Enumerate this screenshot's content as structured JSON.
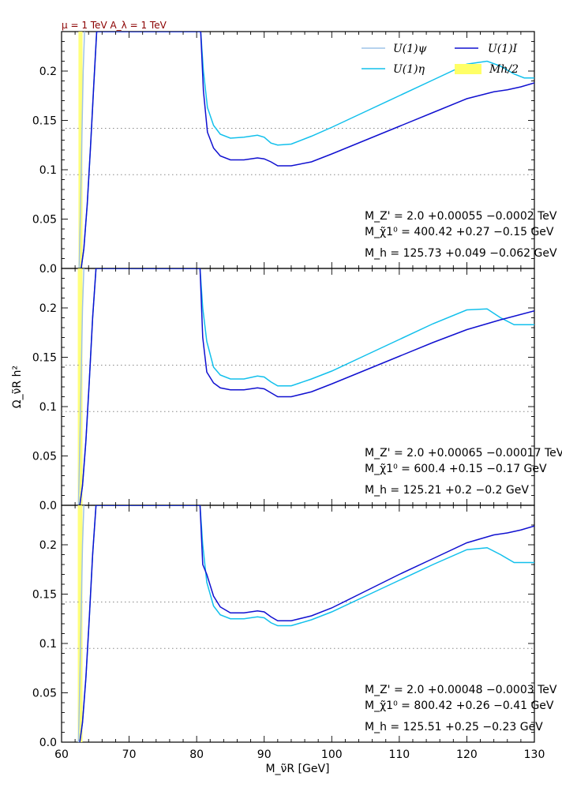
{
  "header_label": "μ = 1 TeV  A_λ = 1 TeV",
  "xlabel": "M_ν̃R [GeV]",
  "ylabel": "Ω_ν̃R h²",
  "colors": {
    "U1_psi": "#9ec3e8",
    "U1_eta": "#12c0ec",
    "U1_I": "#1010d0",
    "Mh_half_band": "#ffff66",
    "reference_lines": "#888888"
  },
  "legend": [
    {
      "key": "U1_psi",
      "label": "U(1)ψ",
      "kind": "line"
    },
    {
      "key": "U1_I",
      "label": "U(1)I",
      "kind": "line"
    },
    {
      "key": "U1_eta",
      "label": "U(1)η",
      "kind": "line"
    },
    {
      "key": "Mh_half_band",
      "label": "Mh/2",
      "kind": "band"
    }
  ],
  "chart_data": [
    {
      "type": "line",
      "xlim": [
        60,
        130
      ],
      "ylim": [
        0,
        0.24
      ],
      "xticks": [
        60,
        70,
        80,
        90,
        100,
        110,
        120,
        130
      ],
      "yticks": [
        0.0,
        0.05,
        0.1,
        0.15,
        0.2
      ],
      "ytick_labels": [
        "0.0",
        "0.05",
        "0.1",
        "0.15",
        "0.2"
      ],
      "reference_lines": [
        0.095,
        0.142
      ],
      "band_x": [
        62.5,
        63.1
      ],
      "annotations": [
        "M_Z' = 2.0 +0.00055 −0.0002 TeV",
        "M_χ̃1⁰ = 400.42 +0.27 −0.15 GeV",
        "M_h = 125.73 +0.049 −0.062 GeV"
      ],
      "series": [
        {
          "name": "U(1)ψ",
          "key": "U1_psi",
          "x": [
            62.6,
            62.8,
            63.0,
            63.2,
            63.4
          ],
          "y": [
            0.0,
            0.06,
            0.13,
            0.2,
            0.24
          ]
        },
        {
          "name": "U(1)η",
          "key": "U1_eta",
          "x": [
            62.9,
            63.3,
            63.8,
            64.3,
            64.8,
            65.2,
            80.6,
            81.0,
            81.6,
            82.5,
            83.5,
            85.0,
            87.0,
            89.0,
            90.0,
            91.0,
            92.0,
            94.0,
            97.0,
            100.0,
            105.0,
            110.0,
            115.0,
            120.0,
            123.0,
            125.0,
            127.0,
            128.5,
            130.0
          ],
          "y": [
            0.0,
            0.02,
            0.065,
            0.125,
            0.19,
            0.24,
            0.24,
            0.2,
            0.163,
            0.145,
            0.136,
            0.132,
            0.133,
            0.135,
            0.133,
            0.127,
            0.125,
            0.126,
            0.134,
            0.143,
            0.159,
            0.175,
            0.191,
            0.207,
            0.21,
            0.205,
            0.197,
            0.193,
            0.193
          ]
        },
        {
          "name": "U(1)I",
          "key": "U1_I",
          "x": [
            62.9,
            63.3,
            63.8,
            64.3,
            64.8,
            65.2,
            80.6,
            81.0,
            81.6,
            82.5,
            83.5,
            85.0,
            87.0,
            89.0,
            90.0,
            91.0,
            92.0,
            94.0,
            97.0,
            100.0,
            105.0,
            110.0,
            115.0,
            120.0,
            124.0,
            126.0,
            128.0,
            130.0
          ],
          "y": [
            0.0,
            0.02,
            0.065,
            0.125,
            0.19,
            0.24,
            0.24,
            0.18,
            0.138,
            0.122,
            0.114,
            0.11,
            0.11,
            0.112,
            0.111,
            0.108,
            0.104,
            0.104,
            0.108,
            0.116,
            0.13,
            0.144,
            0.158,
            0.172,
            0.179,
            0.181,
            0.184,
            0.188
          ]
        }
      ]
    },
    {
      "type": "line",
      "xlim": [
        60,
        130
      ],
      "ylim": [
        0,
        0.24
      ],
      "xticks": [
        60,
        70,
        80,
        90,
        100,
        110,
        120,
        130
      ],
      "yticks": [
        0.0,
        0.05,
        0.1,
        0.15,
        0.2
      ],
      "ytick_labels": [
        "0.0",
        "0.05",
        "0.1",
        "0.15",
        "0.2"
      ],
      "reference_lines": [
        0.095,
        0.142
      ],
      "band_x": [
        62.4,
        63.1
      ],
      "annotations": [
        "M_Z' = 2.0 +0.00065 −0.00017 TeV",
        "M_χ̃1⁰ = 600.4 +0.15 −0.17 GeV",
        "M_h = 125.21 +0.2 −0.2 GeV"
      ],
      "series": [
        {
          "name": "U(1)ψ",
          "key": "U1_psi",
          "x": [
            62.5,
            62.7,
            62.9,
            63.1,
            63.3
          ],
          "y": [
            0.0,
            0.06,
            0.13,
            0.2,
            0.24
          ]
        },
        {
          "name": "U(1)η",
          "key": "U1_eta",
          "x": [
            62.7,
            63.1,
            63.6,
            64.1,
            64.6,
            65.1,
            80.5,
            80.9,
            81.5,
            82.5,
            83.5,
            85.0,
            87.0,
            89.0,
            90.0,
            91.0,
            92.0,
            94.0,
            97.0,
            100.0,
            105.0,
            110.0,
            115.0,
            120.0,
            123.0,
            125.0,
            127.0,
            130.0
          ],
          "y": [
            0.0,
            0.02,
            0.065,
            0.125,
            0.19,
            0.24,
            0.24,
            0.2,
            0.166,
            0.14,
            0.132,
            0.128,
            0.128,
            0.131,
            0.13,
            0.125,
            0.121,
            0.121,
            0.128,
            0.136,
            0.152,
            0.168,
            0.184,
            0.198,
            0.199,
            0.19,
            0.183,
            0.183
          ]
        },
        {
          "name": "U(1)I",
          "key": "U1_I",
          "x": [
            62.7,
            63.1,
            63.6,
            64.1,
            64.6,
            65.1,
            80.5,
            80.9,
            81.5,
            82.5,
            83.5,
            85.0,
            87.0,
            89.0,
            90.0,
            91.0,
            92.0,
            94.0,
            97.0,
            100.0,
            105.0,
            110.0,
            115.0,
            120.0,
            125.0,
            130.0
          ],
          "y": [
            0.0,
            0.02,
            0.065,
            0.125,
            0.19,
            0.24,
            0.24,
            0.17,
            0.135,
            0.124,
            0.119,
            0.117,
            0.117,
            0.119,
            0.118,
            0.114,
            0.11,
            0.11,
            0.115,
            0.123,
            0.137,
            0.151,
            0.165,
            0.178,
            0.188,
            0.197
          ]
        }
      ]
    },
    {
      "type": "line",
      "xlim": [
        60,
        130
      ],
      "ylim": [
        0,
        0.24
      ],
      "xticks": [
        60,
        70,
        80,
        90,
        100,
        110,
        120,
        130
      ],
      "xtick_labels": [
        "60",
        "70",
        "80",
        "90",
        "100",
        "110",
        "120",
        "130"
      ],
      "yticks": [
        0.0,
        0.05,
        0.1,
        0.15,
        0.2
      ],
      "ytick_labels": [
        "0.0",
        "0.05",
        "0.1",
        "0.15",
        "0.2"
      ],
      "reference_lines": [
        0.095,
        0.142
      ],
      "band_x": [
        62.4,
        63.1
      ],
      "annotations": [
        "M_Z' = 2.0 +0.00048 −0.0003 TeV",
        "M_χ̃1⁰ = 800.42 +0.26 −0.41 GeV",
        "M_h = 125.51 +0.25 −0.23 GeV"
      ],
      "series": [
        {
          "name": "U(1)ψ",
          "key": "U1_psi",
          "x": [
            62.5,
            62.7,
            62.9,
            63.1,
            63.3
          ],
          "y": [
            0.0,
            0.06,
            0.13,
            0.2,
            0.24
          ]
        },
        {
          "name": "U(1)η",
          "key": "U1_eta",
          "x": [
            62.7,
            63.1,
            63.6,
            64.1,
            64.6,
            65.1,
            80.5,
            80.9,
            81.5,
            82.5,
            83.5,
            85.0,
            87.0,
            89.0,
            90.0,
            91.0,
            92.0,
            94.0,
            97.0,
            100.0,
            105.0,
            110.0,
            115.0,
            120.0,
            123.0,
            125.0,
            127.0,
            130.0
          ],
          "y": [
            0.0,
            0.02,
            0.065,
            0.125,
            0.19,
            0.24,
            0.24,
            0.2,
            0.162,
            0.138,
            0.129,
            0.125,
            0.125,
            0.127,
            0.126,
            0.121,
            0.118,
            0.118,
            0.124,
            0.132,
            0.148,
            0.164,
            0.18,
            0.195,
            0.197,
            0.19,
            0.182,
            0.182
          ]
        },
        {
          "name": "U(1)I",
          "key": "U1_I",
          "x": [
            62.7,
            63.1,
            63.6,
            64.1,
            64.6,
            65.1,
            80.5,
            80.9,
            81.5,
            82.5,
            83.5,
            85.0,
            87.0,
            89.0,
            90.0,
            91.0,
            92.0,
            94.0,
            97.0,
            100.0,
            105.0,
            110.0,
            115.0,
            120.0,
            124.0,
            126.0,
            128.0,
            130.0
          ],
          "y": [
            0.0,
            0.02,
            0.065,
            0.125,
            0.19,
            0.24,
            0.24,
            0.18,
            0.17,
            0.148,
            0.137,
            0.131,
            0.131,
            0.133,
            0.132,
            0.127,
            0.123,
            0.123,
            0.128,
            0.136,
            0.153,
            0.17,
            0.186,
            0.202,
            0.21,
            0.212,
            0.215,
            0.219
          ]
        }
      ]
    }
  ]
}
